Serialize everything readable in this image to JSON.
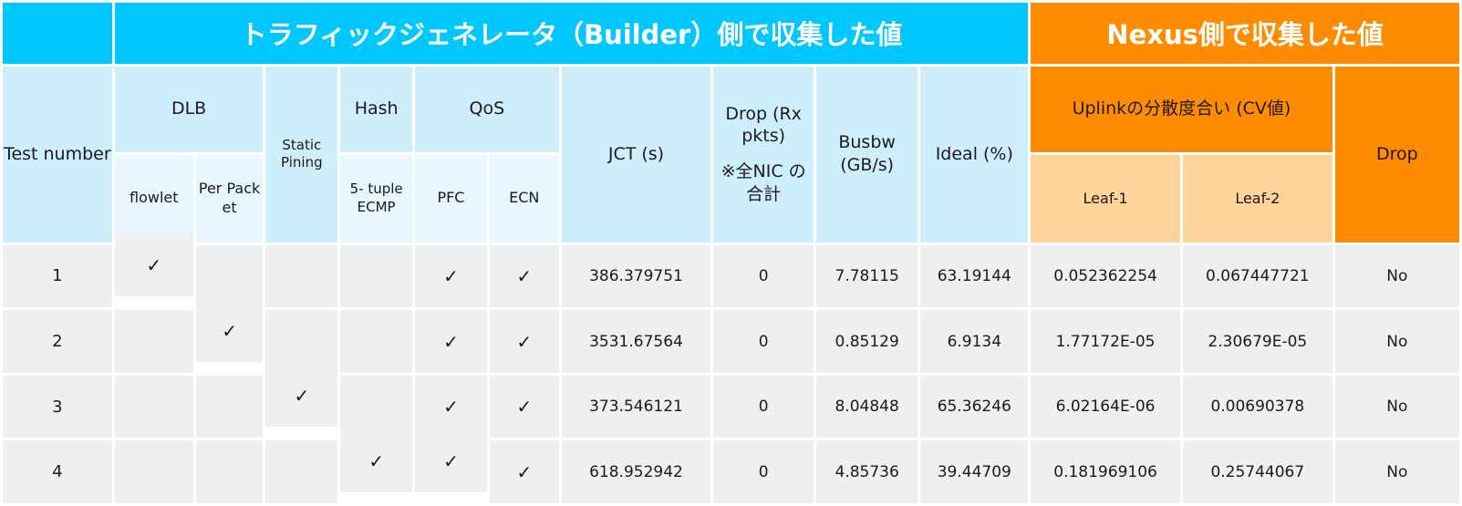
{
  "header": {
    "builder_title": "トラフィックジェネレータ（Builder）側で収集した値",
    "nexus_title": "Nexus側で収集した値"
  },
  "columns": {
    "test_number": "Test number",
    "dlb": "DLB",
    "flowlet": "flowlet",
    "per_packet": "Per Pack et",
    "static_pining": "Static Pining",
    "hash": "Hash",
    "five_tuple": "5- tuple ECMP",
    "qos": "QoS",
    "pfc": "PFC",
    "ecn": "ECN",
    "jct": "JCT (s)",
    "drop_rx": "Drop (Rx pkts)",
    "drop_note": "※全NIC の 合計",
    "busbw": "Busbw (GB/s)",
    "ideal": "Ideal (%)",
    "uplink": "Uplinkの分散度合い (CV値)",
    "leaf1": "Leaf-1",
    "leaf2": "Leaf-2",
    "drop": "Drop"
  },
  "check_mark": "✓",
  "rows": [
    {
      "test": "1",
      "flowlet": true,
      "per_packet": false,
      "static": false,
      "hash": false,
      "pfc": true,
      "ecn": true,
      "jct": "386.379751",
      "drop_rx": "0",
      "busbw": "7.78115",
      "ideal": "63.19144",
      "leaf1": "0.052362254",
      "leaf2": "0.067447721",
      "drop": "No"
    },
    {
      "test": "2",
      "flowlet": false,
      "per_packet": true,
      "static": false,
      "hash": false,
      "pfc": true,
      "ecn": true,
      "jct": "3531.67564",
      "drop_rx": "0",
      "busbw": "0.85129",
      "ideal": "6.9134",
      "leaf1": "1.77172E-05",
      "leaf2": "2.30679E-05",
      "drop": "No"
    },
    {
      "test": "3",
      "flowlet": false,
      "per_packet": false,
      "static": true,
      "hash": false,
      "pfc": true,
      "ecn": true,
      "jct": "373.546121",
      "drop_rx": "0",
      "busbw": "8.04848",
      "ideal": "65.36246",
      "leaf1": "6.02164E-06",
      "leaf2": "0.00690378",
      "drop": "No"
    },
    {
      "test": "4",
      "flowlet": false,
      "per_packet": false,
      "static": false,
      "hash": true,
      "pfc": true,
      "ecn": true,
      "jct": "618.952942",
      "drop_rx": "0",
      "busbw": "4.85736",
      "ideal": "39.44709",
      "leaf1": "0.181969106",
      "leaf2": "0.25744067",
      "drop": "No"
    }
  ],
  "colors": {
    "builder_band": "#00c8ff",
    "nexus_band": "#ff8c00",
    "header_blue": "#cfeefc",
    "header_light": "#e8f6fd",
    "header_peach": "#ffd49a",
    "row_gray": "#eeeff0"
  }
}
